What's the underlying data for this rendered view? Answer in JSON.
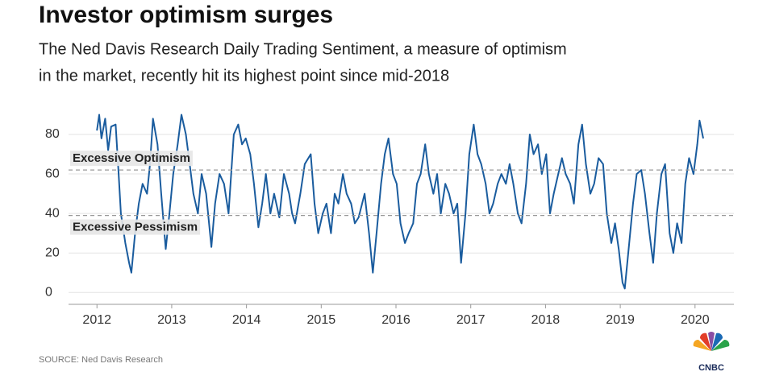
{
  "chart_data": {
    "type": "line",
    "title": "Investor optimism surges",
    "subtitle": [
      "The Ned Davis Research Daily Trading Sentiment, a measure of optimism",
      "in the market, recently hit its highest point since mid-2018"
    ],
    "source": "SOURCE: Ned Davis Research",
    "logo": "CNBC",
    "color": "#1a5c9e",
    "grid": true,
    "xlim": [
      2011.62,
      2020.52
    ],
    "xticks": [
      2012,
      2013,
      2014,
      2015,
      2016,
      2017,
      2018,
      2019,
      2020
    ],
    "ylim": [
      -6,
      91
    ],
    "yticks": [
      0,
      20,
      40,
      60,
      80
    ],
    "annotations": [
      {
        "text": "Excessive Optimism",
        "value": 62
      },
      {
        "text": "Excessive Pessimism",
        "value": 39
      }
    ],
    "x": [
      2012.0,
      2012.03,
      2012.06,
      2012.11,
      2012.15,
      2012.19,
      2012.25,
      2012.29,
      2012.32,
      2012.38,
      2012.43,
      2012.46,
      2012.51,
      2012.56,
      2012.61,
      2012.67,
      2012.71,
      2012.75,
      2012.81,
      2012.86,
      2012.92,
      2012.97,
      2013.02,
      2013.08,
      2013.13,
      2013.19,
      2013.24,
      2013.29,
      2013.35,
      2013.4,
      2013.46,
      2013.53,
      2013.58,
      2013.64,
      2013.7,
      2013.76,
      2013.83,
      2013.89,
      2013.94,
      2013.99,
      2014.05,
      2014.1,
      2014.16,
      2014.21,
      2014.26,
      2014.32,
      2014.37,
      2014.44,
      2014.5,
      2014.57,
      2014.61,
      2014.65,
      2014.72,
      2014.78,
      2014.86,
      2014.91,
      2014.96,
      2015.02,
      2015.07,
      2015.13,
      2015.18,
      2015.23,
      2015.29,
      2015.34,
      2015.4,
      2015.45,
      2015.5,
      2015.58,
      2015.64,
      2015.69,
      2015.74,
      2015.8,
      2015.85,
      2015.9,
      2015.96,
      2016.01,
      2016.06,
      2016.12,
      2016.17,
      2016.23,
      2016.28,
      2016.33,
      2016.39,
      2016.44,
      2016.5,
      2016.55,
      2016.6,
      2016.66,
      2016.71,
      2016.77,
      2016.82,
      2016.87,
      2016.93,
      2016.98,
      2017.04,
      2017.09,
      2017.14,
      2017.2,
      2017.25,
      2017.3,
      2017.36,
      2017.41,
      2017.47,
      2017.52,
      2017.57,
      2017.63,
      2017.68,
      2017.74,
      2017.79,
      2017.84,
      2017.9,
      2017.95,
      2018.01,
      2018.06,
      2018.11,
      2018.17,
      2018.22,
      2018.27,
      2018.33,
      2018.38,
      2018.44,
      2018.49,
      2018.54,
      2018.6,
      2018.65,
      2018.71,
      2018.77,
      2018.82,
      2018.88,
      2018.93,
      2018.98,
      2019.03,
      2019.06,
      2019.12,
      2019.17,
      2019.22,
      2019.28,
      2019.33,
      2019.39,
      2019.44,
      2019.49,
      2019.55,
      2019.6,
      2019.66,
      2019.71,
      2019.76,
      2019.82,
      2019.87,
      2019.92,
      2019.98,
      2020.03,
      2020.06,
      2020.11
    ],
    "values": [
      82,
      90,
      78,
      88,
      72,
      84,
      85,
      60,
      40,
      25,
      15,
      10,
      30,
      45,
      55,
      50,
      65,
      88,
      75,
      50,
      22,
      40,
      60,
      75,
      90,
      80,
      65,
      50,
      40,
      60,
      50,
      23,
      45,
      60,
      55,
      40,
      80,
      85,
      75,
      78,
      70,
      55,
      33,
      45,
      60,
      40,
      50,
      38,
      60,
      50,
      40,
      35,
      50,
      65,
      70,
      45,
      30,
      40,
      45,
      30,
      50,
      45,
      60,
      50,
      45,
      35,
      38,
      50,
      30,
      10,
      30,
      55,
      70,
      78,
      60,
      55,
      35,
      25,
      30,
      35,
      55,
      60,
      75,
      60,
      50,
      60,
      40,
      55,
      50,
      40,
      45,
      15,
      40,
      70,
      85,
      70,
      65,
      55,
      40,
      45,
      55,
      60,
      55,
      65,
      55,
      40,
      35,
      55,
      80,
      70,
      75,
      60,
      70,
      40,
      50,
      60,
      68,
      60,
      55,
      45,
      75,
      85,
      65,
      50,
      55,
      68,
      65,
      40,
      25,
      35,
      22,
      5,
      2,
      25,
      45,
      60,
      62,
      50,
      30,
      15,
      40,
      60,
      65,
      30,
      20,
      35,
      25,
      55,
      68,
      60,
      75,
      87,
      78
    ]
  }
}
